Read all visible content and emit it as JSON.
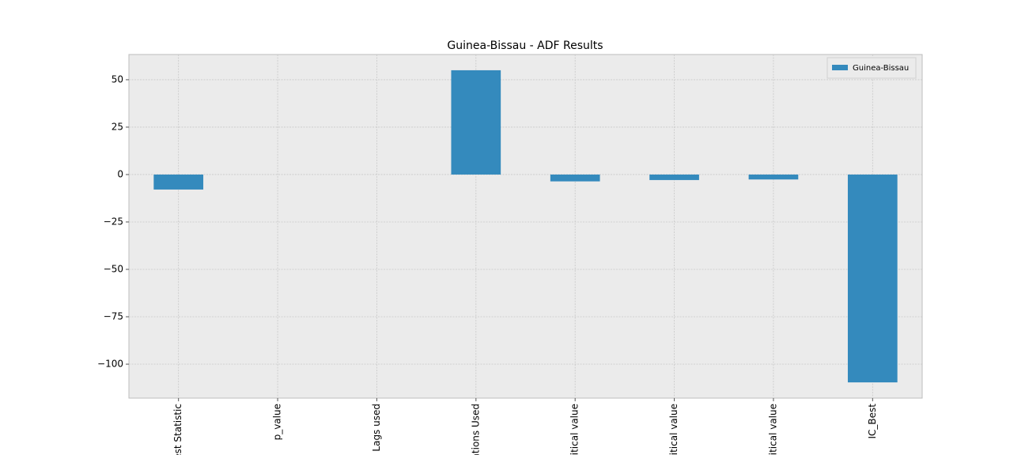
{
  "chart_data": {
    "type": "bar",
    "title": "Guinea-Bissau - ADF Results",
    "categories": [
      "est Statistic",
      "p_value",
      "Lags used",
      "ations Used",
      "ritical value",
      "ritical value",
      "ritical value",
      "IC_Best"
    ],
    "series": [
      {
        "name": "Guinea-Bissau",
        "color": "#348abd",
        "values": [
          -7.9,
          0.0,
          0,
          55,
          -3.6,
          -2.9,
          -2.6,
          -109.6
        ]
      }
    ],
    "ylim": [
      -117.9,
      63.3
    ],
    "yticks": [
      {
        "value": -100,
        "label": "−100"
      },
      {
        "value": -75,
        "label": "−75"
      },
      {
        "value": -50,
        "label": "−50"
      },
      {
        "value": -25,
        "label": "−25"
      },
      0,
      25,
      50
    ],
    "grid": true,
    "legend": "upper right"
  }
}
